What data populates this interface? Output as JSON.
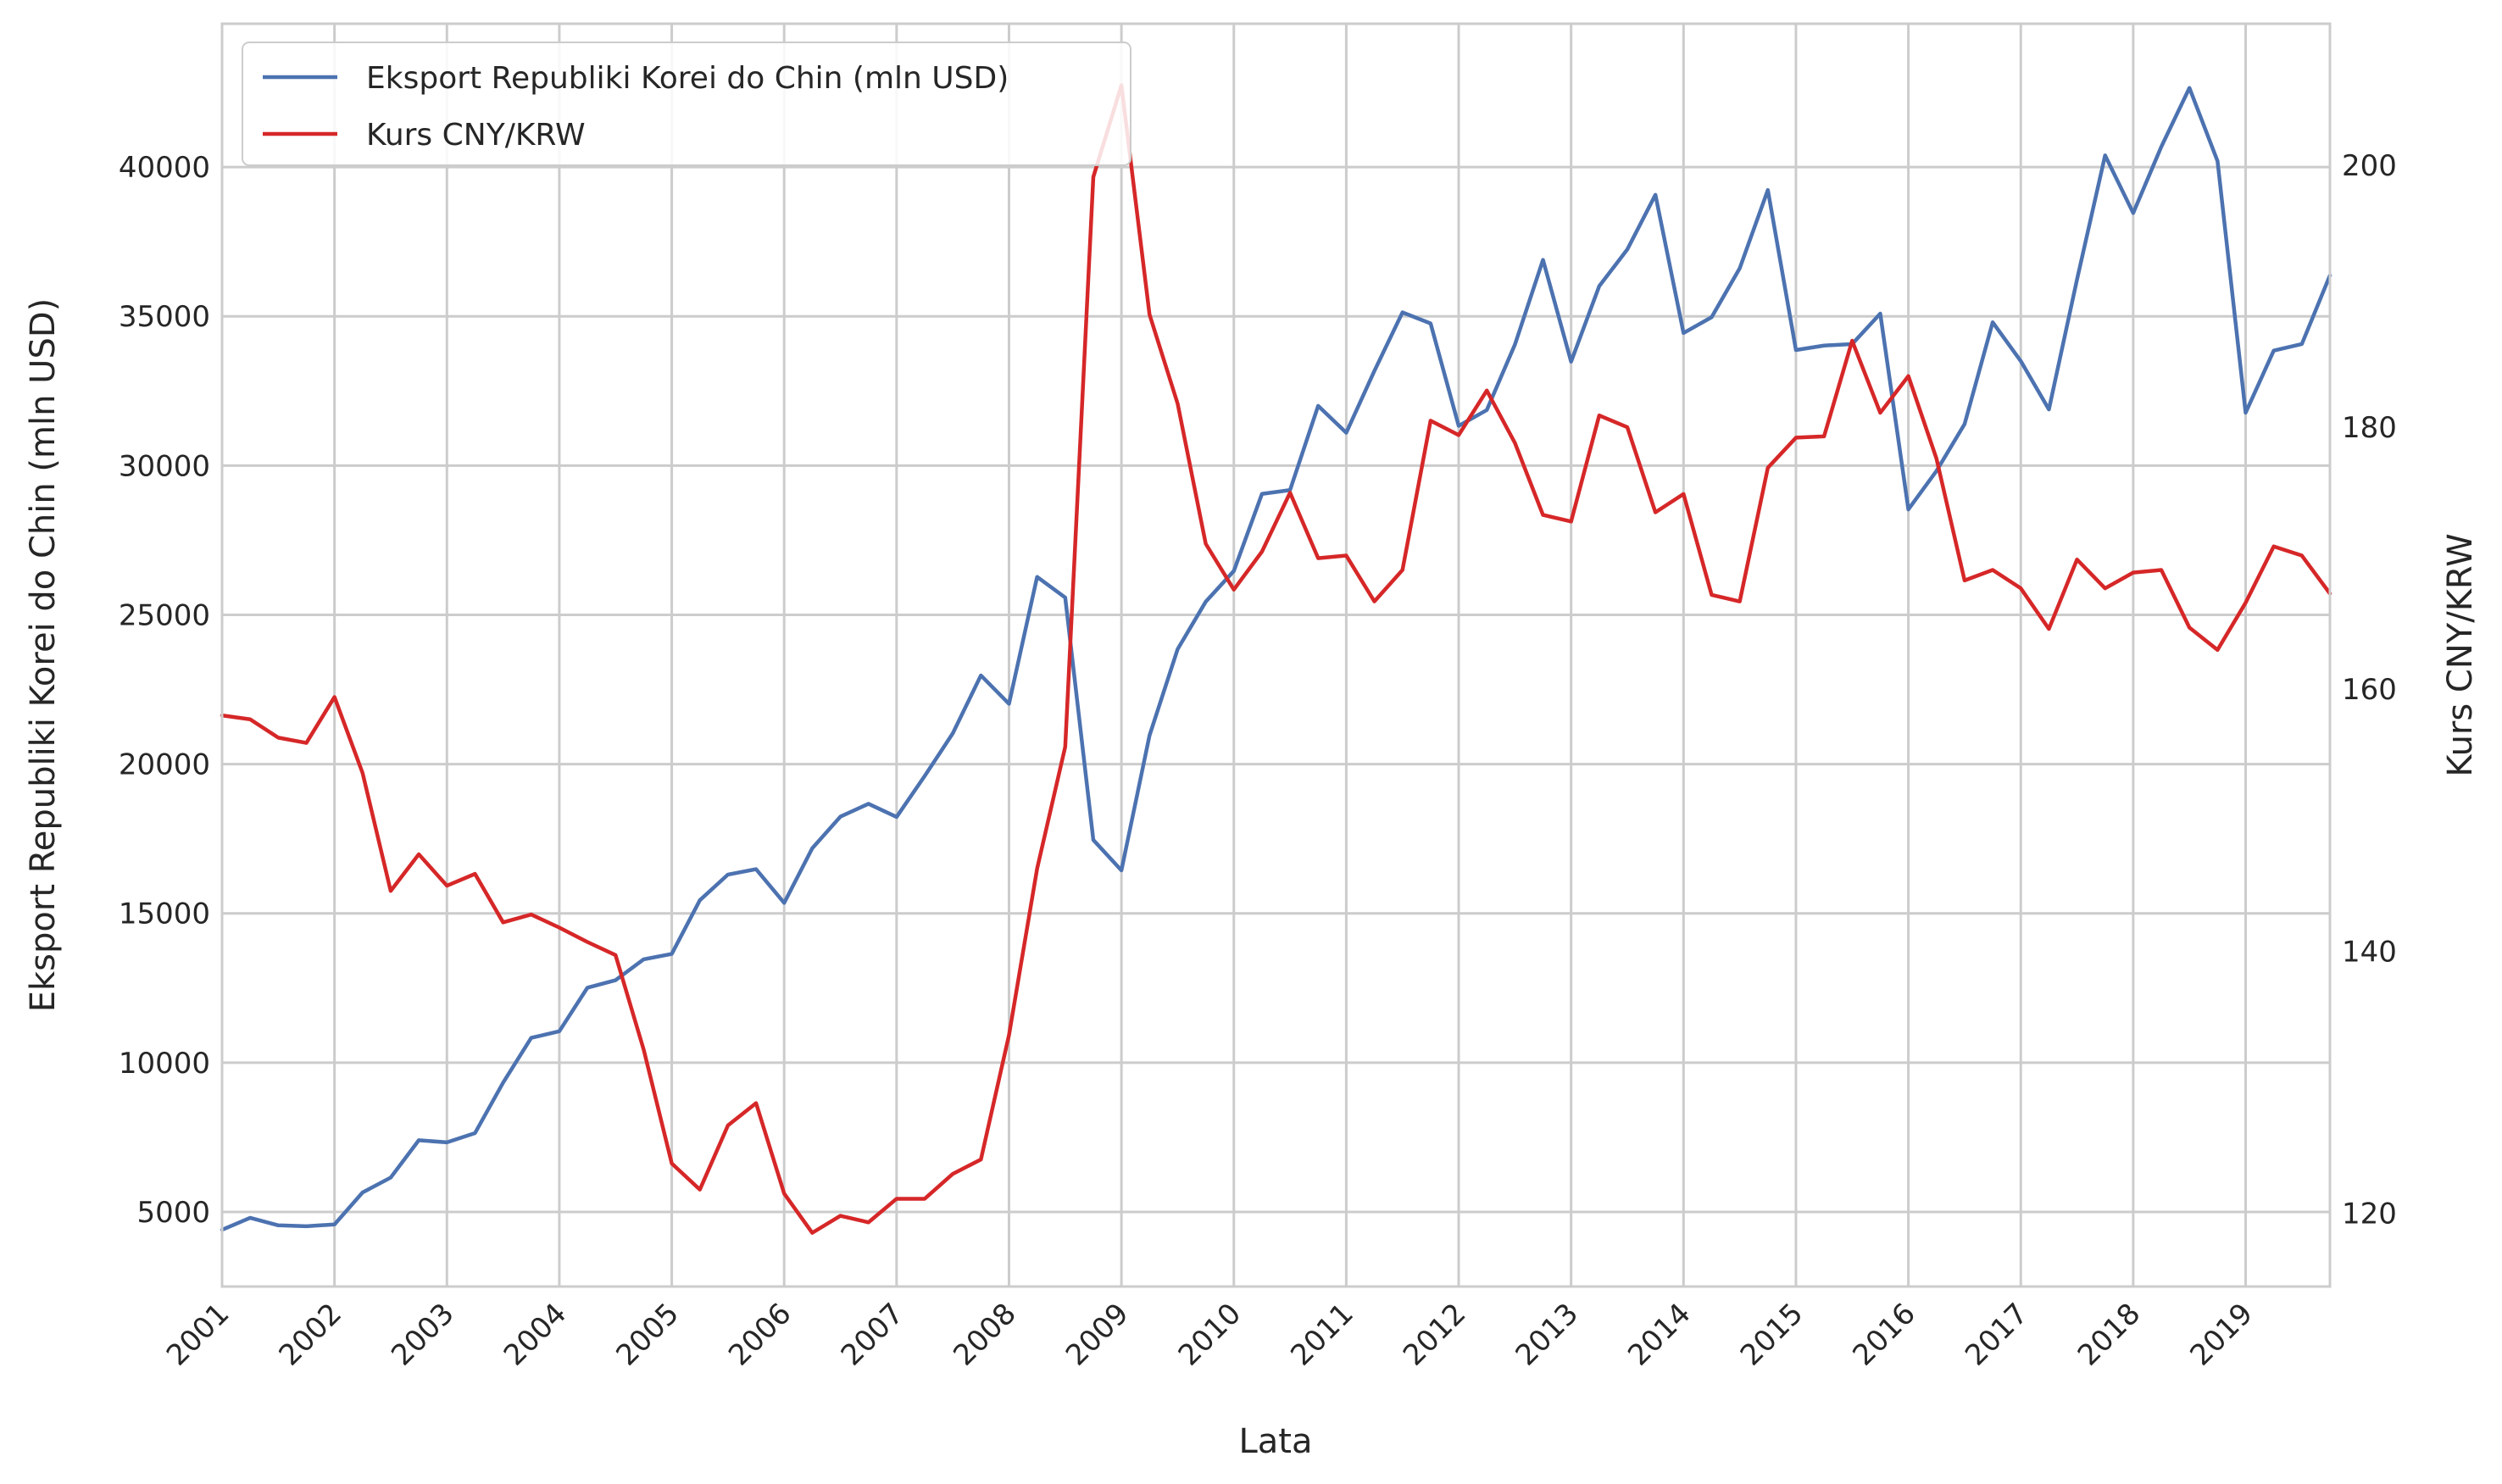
{
  "chart_data": {
    "type": "line",
    "xlabel": "Lata",
    "ylabel_left": "Eksport Republiki Korei do Chin (mln USD)",
    "ylabel_right": "Kurs CNY/KRW",
    "x_ticks": [
      "2001",
      "2002",
      "2003",
      "2004",
      "2005",
      "2006",
      "2007",
      "2008",
      "2009",
      "2010",
      "2011",
      "2012",
      "2013",
      "2014",
      "2015",
      "2016",
      "2017",
      "2018",
      "2019"
    ],
    "x_range": [
      2001.0,
      2019.75
    ],
    "ylim_left": [
      2500,
      44800
    ],
    "ylim_right": [
      114.4,
      210.8
    ],
    "y_ticks_left": [
      5000,
      10000,
      15000,
      20000,
      25000,
      30000,
      35000,
      40000
    ],
    "y_ticks_right": [
      120,
      140,
      160,
      180,
      200
    ],
    "grid": true,
    "legend_position": "top-left",
    "x": [
      2001.0,
      2001.25,
      2001.5,
      2001.75,
      2002.0,
      2002.25,
      2002.5,
      2002.75,
      2003.0,
      2003.25,
      2003.5,
      2003.75,
      2004.0,
      2004.25,
      2004.5,
      2004.75,
      2005.0,
      2005.25,
      2005.5,
      2005.75,
      2006.0,
      2006.25,
      2006.5,
      2006.75,
      2007.0,
      2007.25,
      2007.5,
      2007.75,
      2008.0,
      2008.25,
      2008.5,
      2008.75,
      2009.0,
      2009.25,
      2009.5,
      2009.75,
      2010.0,
      2010.25,
      2010.5,
      2010.75,
      2011.0,
      2011.25,
      2011.5,
      2011.75,
      2012.0,
      2012.25,
      2012.5,
      2012.75,
      2013.0,
      2013.25,
      2013.5,
      2013.75,
      2014.0,
      2014.25,
      2014.5,
      2014.75,
      2015.0,
      2015.25,
      2015.5,
      2015.75,
      2016.0,
      2016.25,
      2016.5,
      2016.75,
      2017.0,
      2017.25,
      2017.5,
      2017.75,
      2018.0,
      2018.25,
      2018.5,
      2018.75,
      2019.0,
      2019.25,
      2019.5,
      2019.75
    ],
    "series": [
      {
        "name": "Eksport Republiki Korei do Chin (mln USD)",
        "axis": "left",
        "color": "#4c72b0",
        "values": [
          4400,
          4800,
          4550,
          4520,
          4580,
          5650,
          6150,
          7400,
          7330,
          7640,
          9330,
          10830,
          11050,
          12510,
          12760,
          13460,
          13640,
          15440,
          16300,
          16480,
          15350,
          17180,
          18240,
          18670,
          18230,
          19600,
          21030,
          22970,
          22020,
          26270,
          25580,
          17460,
          16440,
          20960,
          23850,
          25440,
          26470,
          29050,
          29180,
          32000,
          31100,
          33170,
          35130,
          34760,
          31330,
          31860,
          34050,
          36890,
          33480,
          36010,
          37240,
          39070,
          34440,
          34970,
          36610,
          39230,
          33870,
          34020,
          34070,
          35090,
          28530,
          29820,
          31390,
          34800,
          33500,
          31880,
          36230,
          40390,
          38460,
          40680,
          42650,
          40200,
          31770,
          33850,
          34070,
          36370
        ]
      },
      {
        "name": "Kurs CNY/KRW",
        "axis": "right",
        "color": "#d62728",
        "values": [
          158.0,
          157.7,
          156.3,
          155.9,
          159.4,
          153.6,
          144.6,
          147.4,
          145.0,
          145.9,
          142.2,
          142.8,
          141.8,
          140.7,
          139.7,
          132.5,
          123.8,
          121.8,
          126.7,
          128.4,
          121.5,
          118.5,
          119.8,
          119.3,
          121.1,
          121.1,
          123.0,
          124.1,
          133.6,
          146.3,
          155.6,
          199.1,
          206.1,
          188.6,
          181.8,
          171.1,
          167.6,
          170.5,
          175.0,
          170.0,
          170.2,
          166.7,
          169.1,
          180.5,
          179.4,
          182.8,
          178.8,
          173.3,
          172.8,
          180.9,
          180.0,
          173.5,
          174.9,
          167.2,
          166.7,
          176.9,
          179.2,
          179.3,
          186.6,
          181.1,
          183.9,
          177.6,
          168.3,
          169.1,
          167.7,
          164.6,
          169.9,
          167.7,
          168.9,
          169.1,
          164.7,
          163.0,
          166.6,
          170.9,
          170.2,
          167.3
        ]
      }
    ]
  }
}
